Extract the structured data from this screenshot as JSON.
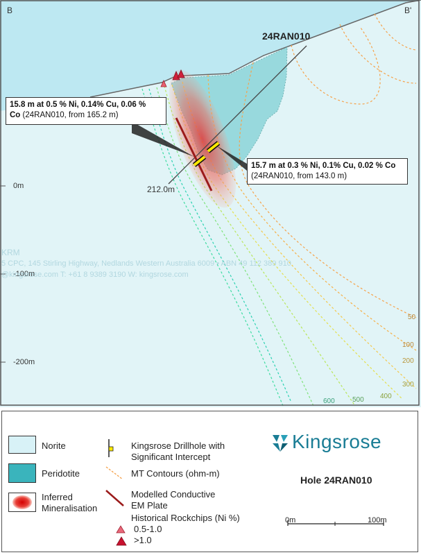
{
  "section": {
    "left_label": "B",
    "right_label": "B'",
    "hole_label": "24RAN010",
    "depth_label": "212.0m",
    "y_ticks": [
      "0m",
      "-100m",
      "-200m"
    ],
    "contour_labels": [
      "50",
      "100",
      "200",
      "300",
      "400",
      "500",
      "600"
    ]
  },
  "callouts": {
    "upper_bold": "15.8 m at 0.5 % Ni, 0.14% Cu, 0.06 %",
    "upper_bold2": "Co",
    "upper_rest": " (24RAN010, from 165.2 m)",
    "lower_bold": "15.7 m at 0.3 % Ni, 0.1% Cu, 0.02 % Co",
    "lower_rest": "(24RAN010, from 143.0 m)"
  },
  "watermark": {
    "line1": "KRM",
    "line2": "5 CPC, 145 Stirling Highway, Nedlands Western Australia 6009  •  ABN 49 112 389 910",
    "line3": "@kingsrose.com   T: +61 8 9389 3190   W: kingsrose.com"
  },
  "legend": {
    "norite": "Norite",
    "peridotite": "Peridotite",
    "inferred": "Inferred Mineralisation",
    "drillhole": "Kingsrose Drillhole with Significant Intercept",
    "mt_contours": "MT Contours (ohm-m)",
    "em_plate": "Modelled Conductive EM Plate",
    "rockchips_title": "Historical Rockchips (Ni %)",
    "rockchip_low": "0.5-1.0",
    "rockchip_high": ">1.0",
    "logo": "Kingsrose",
    "hole_title": "Hole 24RAN010",
    "scale_start": "0m",
    "scale_end": "100m"
  },
  "colors": {
    "sky": "#bfe9f3",
    "norite": "#dff3f6",
    "peridotite": "#62c3c8",
    "mineralisation": "#e04040",
    "em_plate": "#9b1b1b",
    "intercept": "#ffe900",
    "logo": "#1a7d95"
  }
}
